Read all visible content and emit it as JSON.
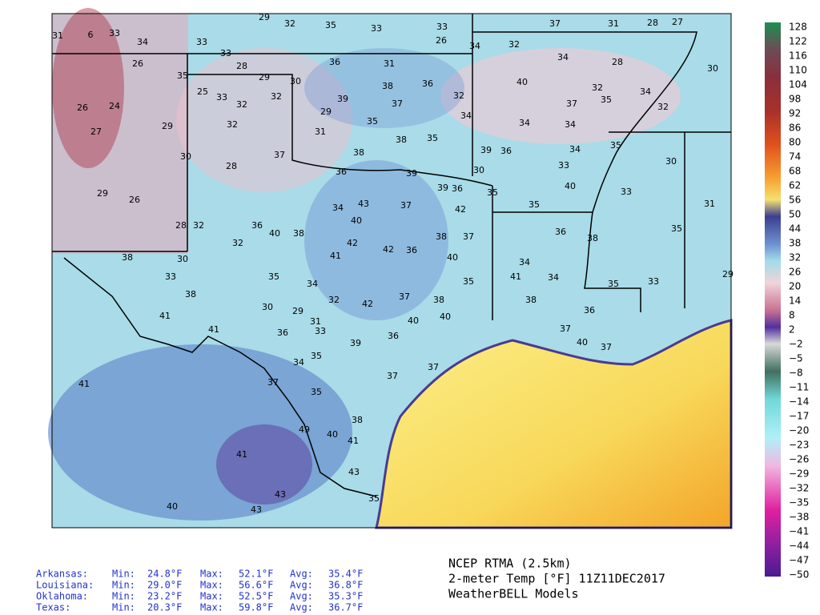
{
  "title": {
    "lines": [
      "NCEP RTMA (2.5km)",
      "2-meter Temp [°F] 11Z11DEC2017",
      "WeatherBELL Models"
    ]
  },
  "stats": {
    "rows": [
      [
        "Arkansas:",
        "Min:",
        "24.8°F",
        "Max:",
        "52.1°F",
        "Avg:",
        "35.4°F"
      ],
      [
        "Louisiana:",
        "Min:",
        "29.0°F",
        "Max:",
        "56.6°F",
        "Avg:",
        "36.8°F"
      ],
      [
        "Oklahoma:",
        "Min:",
        "23.2°F",
        "Max:",
        "52.5°F",
        "Avg:",
        "35.3°F"
      ],
      [
        "Texas:",
        "Min:",
        "20.3°F",
        "Max:",
        "59.8°F",
        "Avg:",
        "36.7°F"
      ]
    ]
  },
  "colorbar_labels": [
    "128",
    "122",
    "116",
    "110",
    "104",
    "98",
    "92",
    "86",
    "80",
    "74",
    "68",
    "62",
    "56",
    "50",
    "44",
    "38",
    "32",
    "26",
    "20",
    "14",
    "8",
    "2",
    "−2",
    "−5",
    "−8",
    "−11",
    "−14",
    "−17",
    "−20",
    "−23",
    "−26",
    "−29",
    "−32",
    "−35",
    "−38",
    "−41",
    "−44",
    "−47",
    "−50"
  ],
  "map_labels": [
    "6",
    "31",
    "33",
    "34",
    "33",
    "29",
    "32",
    "35",
    "33",
    "33",
    "26",
    "34",
    "32",
    "37",
    "31",
    "28",
    "27",
    "28",
    "33",
    "36",
    "31",
    "26",
    "35",
    "25",
    "33",
    "32",
    "32",
    "29",
    "30",
    "34",
    "28",
    "40",
    "37",
    "32",
    "35",
    "34",
    "32",
    "30",
    "26",
    "24",
    "27",
    "29",
    "32",
    "30",
    "28",
    "37",
    "29",
    "39",
    "38",
    "37",
    "36",
    "32",
    "34",
    "35",
    "39",
    "36",
    "34",
    "34",
    "34",
    "35",
    "31",
    "38",
    "38",
    "35",
    "36",
    "39",
    "30",
    "33",
    "40",
    "30",
    "29",
    "26",
    "28",
    "35",
    "39",
    "36",
    "34",
    "43",
    "37",
    "42",
    "40",
    "36",
    "40",
    "38",
    "42",
    "38",
    "37",
    "35",
    "33",
    "31",
    "36",
    "38",
    "35",
    "32",
    "32",
    "38",
    "30",
    "41",
    "42",
    "36",
    "40",
    "34",
    "35",
    "41",
    "34",
    "35",
    "38",
    "33",
    "34",
    "32",
    "42",
    "37",
    "38",
    "35",
    "33",
    "29",
    "30",
    "29",
    "41",
    "41",
    "31",
    "40",
    "40",
    "36",
    "33",
    "36",
    "39",
    "38",
    "36",
    "37",
    "40",
    "37",
    "35",
    "34",
    "37",
    "37",
    "35",
    "37",
    "41",
    "38",
    "40",
    "41",
    "49",
    "41",
    "43",
    "43",
    "40",
    "43",
    "35"
  ]
}
